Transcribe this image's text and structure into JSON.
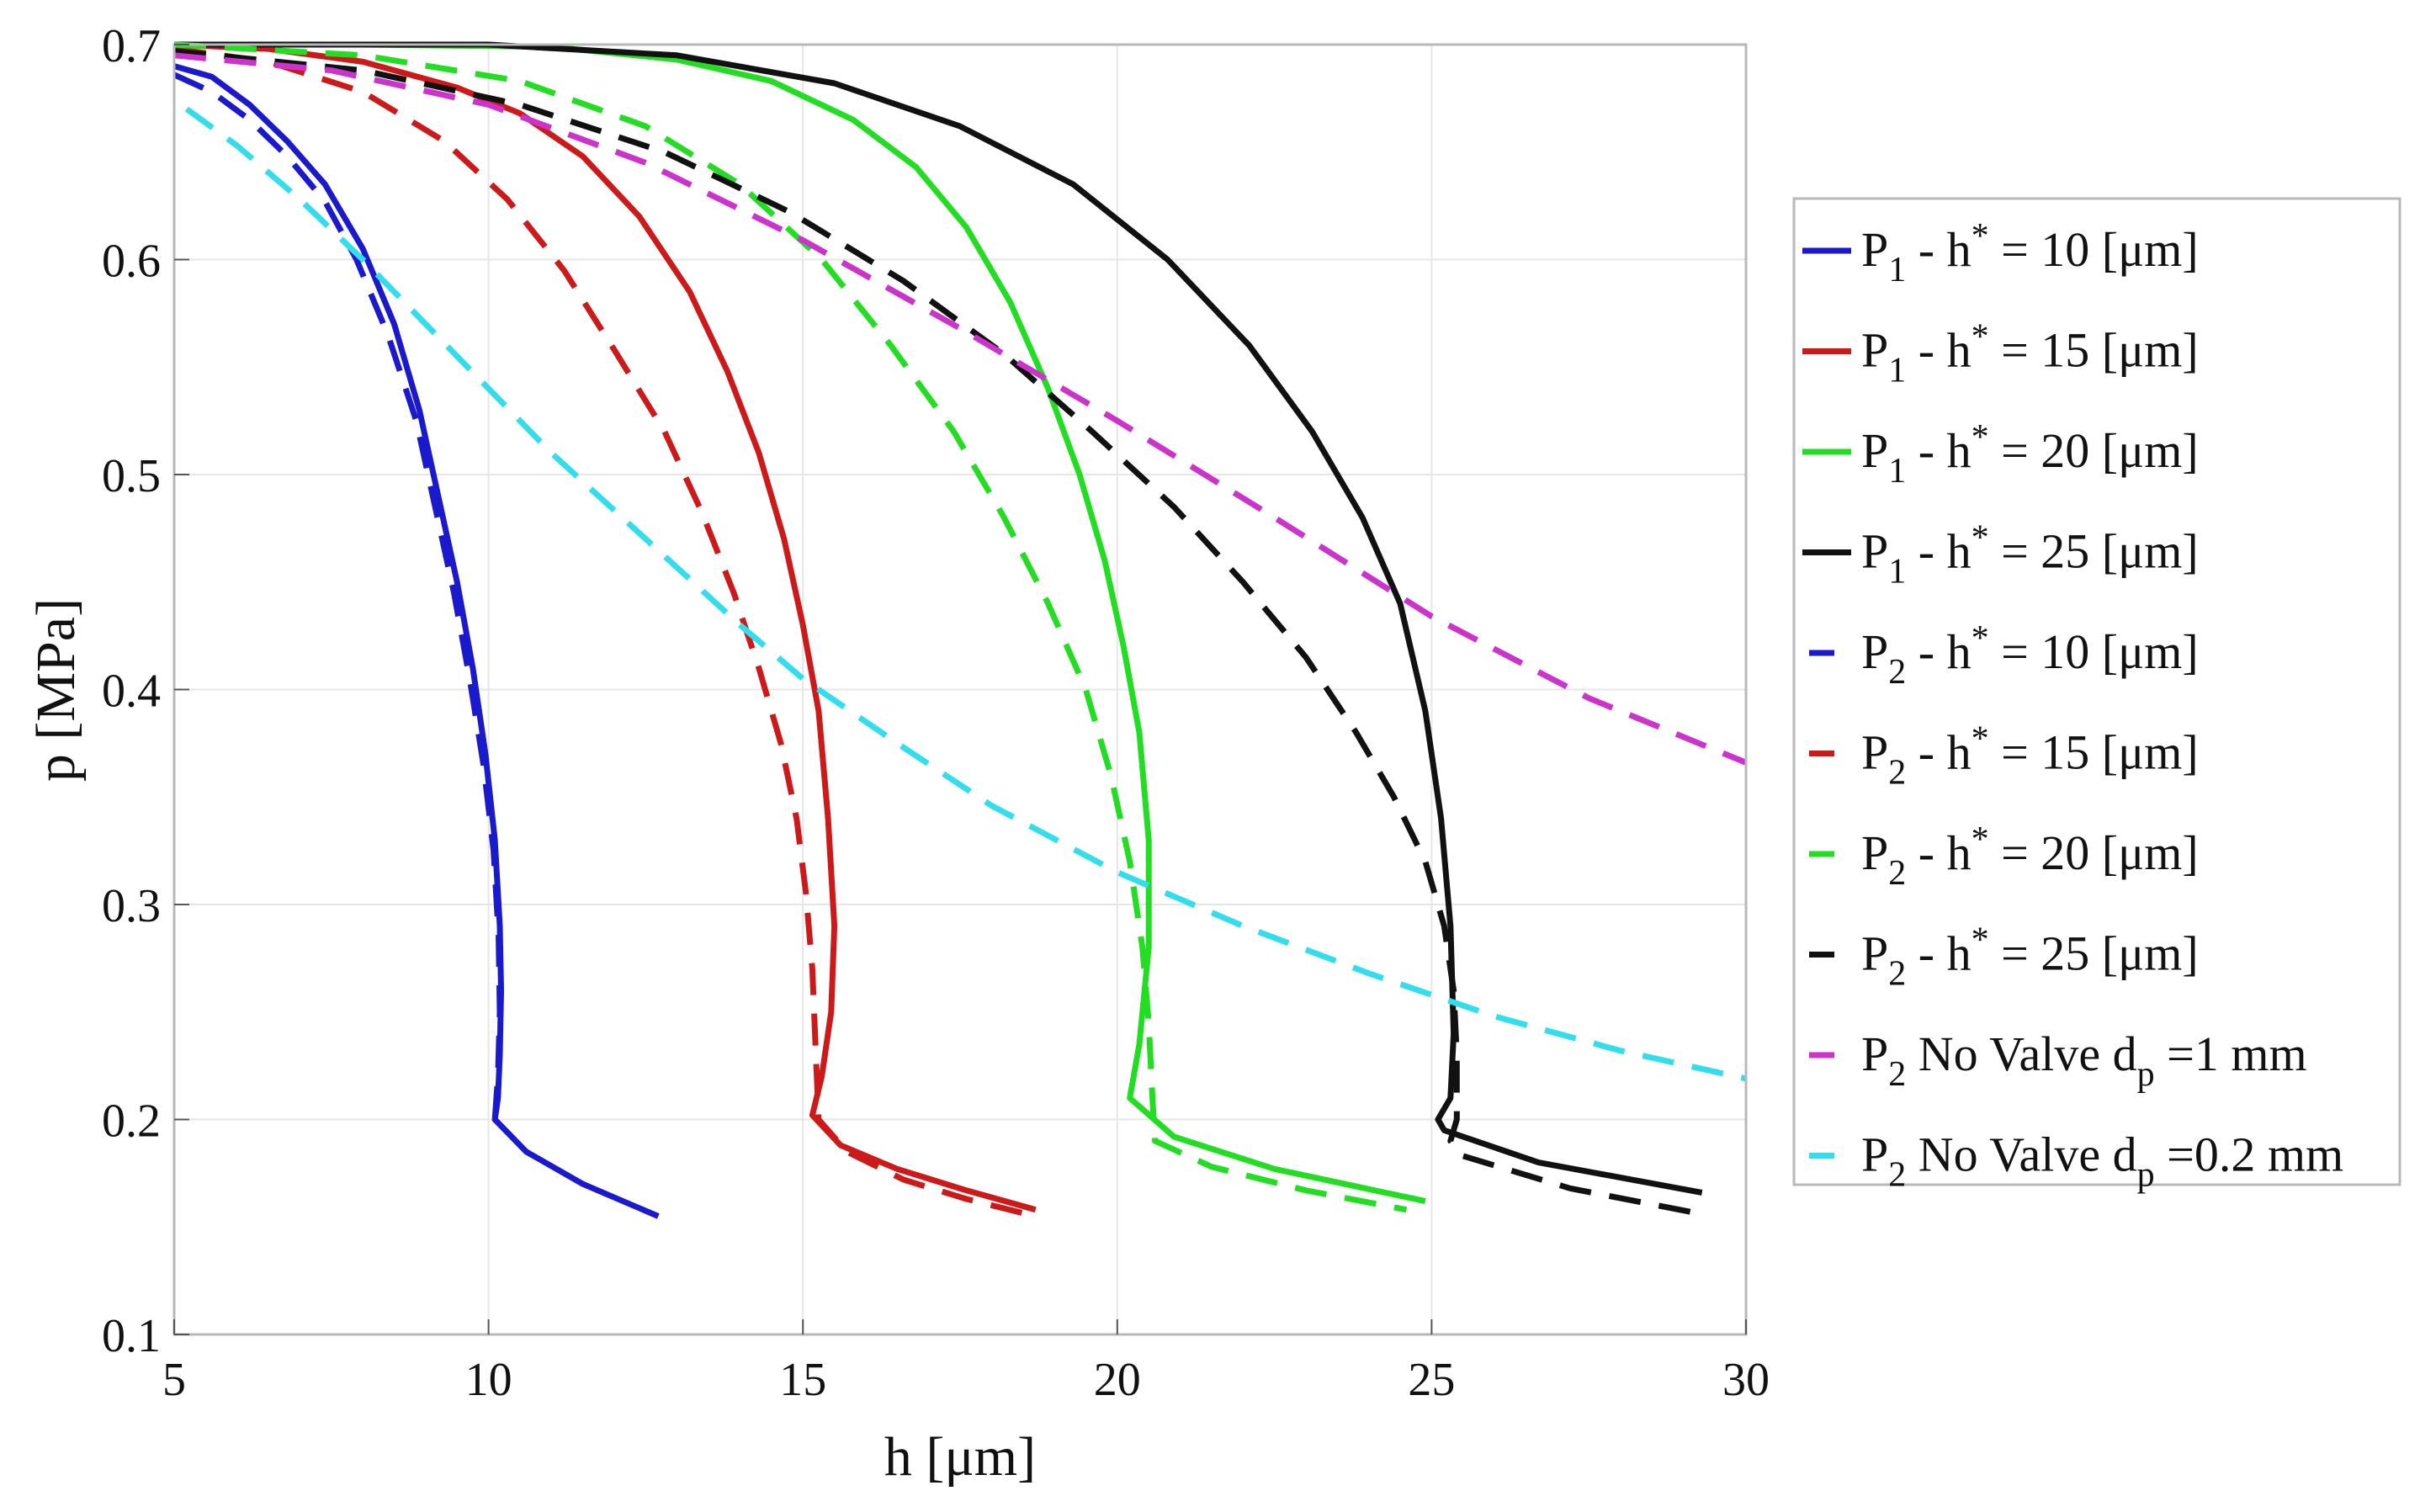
{
  "chart_data": {
    "type": "line",
    "title": "",
    "xlabel": "h [μm]",
    "ylabel": "p [MPa]",
    "xlim": [
      5,
      30
    ],
    "ylim": [
      0.1,
      0.7
    ],
    "xticks": [
      "5",
      "10",
      "15",
      "20",
      "25",
      "30"
    ],
    "yticks": [
      "0.1",
      "0.2",
      "0.3",
      "0.4",
      "0.5",
      "0.6",
      "0.7"
    ],
    "grid": true,
    "legend_position": "right",
    "series": [
      {
        "name": "P1 - h* = 10 [μm]",
        "label": {
          "main": "P",
          "sub": "1",
          "mid": " - h",
          "sup": "*",
          "rest": " = 10 [μm]"
        },
        "color": "#1a1acc",
        "dash": "solid",
        "x": [
          5,
          5.6,
          6.2,
          6.8,
          7.4,
          8,
          8.5,
          8.9,
          9.2,
          9.5,
          9.75,
          9.95,
          10.1,
          10.18,
          10.2,
          10.18,
          10.15,
          10.1,
          10.6,
          11.5,
          12.7
        ],
        "y": [
          0.69,
          0.685,
          0.672,
          0.655,
          0.635,
          0.605,
          0.57,
          0.53,
          0.49,
          0.45,
          0.41,
          0.37,
          0.33,
          0.29,
          0.26,
          0.23,
          0.21,
          0.2,
          0.185,
          0.17,
          0.155
        ]
      },
      {
        "name": "P1 - h* = 15 [μm]",
        "label": {
          "main": "P",
          "sub": "1",
          "mid": " - h",
          "sup": "*",
          "rest": " = 15 [μm]"
        },
        "color": "#cc1a1a",
        "dash": "solid",
        "x": [
          5,
          6.5,
          8,
          9.5,
          10.5,
          11.5,
          12.4,
          13.2,
          13.8,
          14.3,
          14.7,
          15,
          15.25,
          15.4,
          15.5,
          15.45,
          15.3,
          15.15,
          15.6,
          16.5,
          17.6,
          18.7
        ],
        "y": [
          0.7,
          0.698,
          0.692,
          0.68,
          0.668,
          0.648,
          0.62,
          0.585,
          0.548,
          0.51,
          0.47,
          0.43,
          0.39,
          0.34,
          0.29,
          0.25,
          0.22,
          0.202,
          0.188,
          0.177,
          0.167,
          0.158
        ]
      },
      {
        "name": "P1 - h* = 20 [μm]",
        "label": {
          "main": "P",
          "sub": "1",
          "mid": " - h",
          "sup": "*",
          "rest": " = 20 [μm]"
        },
        "color": "#22dd22",
        "dash": "solid",
        "x": [
          5,
          8,
          11,
          13,
          14.5,
          15.8,
          16.8,
          17.6,
          18.3,
          18.9,
          19.4,
          19.8,
          20.1,
          20.35,
          20.5,
          20.5,
          20.35,
          20.2,
          20.9,
          22.5,
          24.9
        ],
        "y": [
          0.7,
          0.7,
          0.699,
          0.693,
          0.683,
          0.665,
          0.643,
          0.615,
          0.58,
          0.54,
          0.5,
          0.46,
          0.42,
          0.38,
          0.33,
          0.28,
          0.235,
          0.21,
          0.192,
          0.177,
          0.162
        ]
      },
      {
        "name": "P1 - h* = 25 [μm]",
        "label": {
          "main": "P",
          "sub": "1",
          "mid": " - h",
          "sup": "*",
          "rest": " = 25 [μm]"
        },
        "color": "#111111",
        "dash": "solid",
        "x": [
          5,
          10,
          13,
          15.5,
          17.5,
          19.3,
          20.8,
          22.1,
          23.1,
          23.9,
          24.5,
          24.9,
          25.15,
          25.3,
          25.35,
          25.3,
          25.1,
          25.2,
          26.7,
          29.3
        ],
        "y": [
          0.7,
          0.7,
          0.695,
          0.682,
          0.662,
          0.635,
          0.6,
          0.56,
          0.52,
          0.48,
          0.44,
          0.39,
          0.34,
          0.29,
          0.24,
          0.21,
          0.2,
          0.195,
          0.18,
          0.166
        ]
      },
      {
        "name": "P2 - h* = 10 [μm]",
        "label": {
          "main": "P",
          "sub": "2",
          "mid": " - h",
          "sup": "*",
          "rest": " = 10 [μm]"
        },
        "color": "#1a1acc",
        "dash": "dashed",
        "x": [
          5,
          5.6,
          6.2,
          6.8,
          7.4,
          7.9,
          8.4,
          8.85,
          9.15,
          9.45,
          9.7,
          9.92,
          10.08,
          10.16,
          10.18,
          10.15,
          10.1
        ],
        "y": [
          0.686,
          0.678,
          0.665,
          0.648,
          0.627,
          0.6,
          0.565,
          0.525,
          0.485,
          0.445,
          0.405,
          0.365,
          0.325,
          0.285,
          0.25,
          0.22,
          0.2
        ]
      },
      {
        "name": "P2 - h* = 15 [μm]",
        "label": {
          "main": "P",
          "sub": "2",
          "mid": " - h",
          "sup": "*",
          "rest": " = 15 [μm]"
        },
        "color": "#cc1a1a",
        "dash": "dashed",
        "x": [
          5,
          6.5,
          8,
          9.3,
          10.3,
          11.2,
          12,
          12.8,
          13.4,
          13.9,
          14.3,
          14.65,
          14.9,
          15.05,
          15.15,
          15.2,
          15.25,
          15.7,
          16.6,
          17.6,
          18.7
        ],
        "y": [
          0.698,
          0.692,
          0.678,
          0.655,
          0.628,
          0.595,
          0.558,
          0.52,
          0.482,
          0.445,
          0.41,
          0.375,
          0.34,
          0.305,
          0.27,
          0.235,
          0.2,
          0.185,
          0.172,
          0.163,
          0.155
        ]
      },
      {
        "name": "P2 - h* = 20 [μm]",
        "label": {
          "main": "P",
          "sub": "2",
          "mid": " - h",
          "sup": "*",
          "rest": " = 20 [μm]"
        },
        "color": "#22dd22",
        "dash": "dashed",
        "x": [
          5,
          8,
          10.5,
          12.5,
          14,
          15.3,
          16.4,
          17.4,
          18.2,
          18.9,
          19.5,
          19.9,
          20.2,
          20.4,
          20.5,
          20.55,
          20.6,
          21.5,
          23,
          24.6
        ],
        "y": [
          0.7,
          0.695,
          0.683,
          0.662,
          0.635,
          0.6,
          0.56,
          0.52,
          0.48,
          0.44,
          0.4,
          0.36,
          0.32,
          0.28,
          0.245,
          0.215,
          0.19,
          0.178,
          0.167,
          0.158
        ]
      },
      {
        "name": "P2 - h* = 25 [μm]",
        "label": {
          "main": "P",
          "sub": "2",
          "mid": " - h",
          "sup": "*",
          "rest": " = 25 [μm]"
        },
        "color": "#111111",
        "dash": "dashed",
        "x": [
          5,
          8,
          10.5,
          12.8,
          14.8,
          16.6,
          18.2,
          19.6,
          20.9,
          22,
          23,
          23.8,
          24.4,
          24.9,
          25.2,
          25.35,
          25.4,
          25.4,
          25.3,
          25.5,
          27.2,
          29.3
        ],
        "y": [
          0.697,
          0.688,
          0.672,
          0.65,
          0.622,
          0.59,
          0.556,
          0.52,
          0.485,
          0.45,
          0.415,
          0.38,
          0.35,
          0.32,
          0.29,
          0.26,
          0.23,
          0.2,
          0.19,
          0.183,
          0.168,
          0.156
        ]
      },
      {
        "name": "P2 No Valve dp=1 mm",
        "label": {
          "main": "P",
          "sub": "2",
          "mid": " No Valve d",
          "sup2": "p",
          "rest": " =1 mm"
        },
        "color": "#cc33cc",
        "dash": "dashed",
        "x": [
          5,
          7.5,
          10,
          12.5,
          15,
          17.5,
          20,
          22.5,
          25,
          27.5,
          30
        ],
        "y": [
          0.695,
          0.688,
          0.672,
          0.645,
          0.609,
          0.568,
          0.525,
          0.48,
          0.434,
          0.396,
          0.366
        ]
      },
      {
        "name": "P2 No Valve dp=0.2 mm",
        "label": {
          "main": "P",
          "sub": "2",
          "mid": " No Valve d",
          "sup2": "p",
          "rest": " =0.2 mm"
        },
        "color": "#33ddee",
        "dash": "dashed",
        "x": [
          5.2,
          6,
          7,
          8,
          9,
          10,
          11,
          12.5,
          14,
          15,
          16.5,
          18,
          20,
          22,
          24,
          26,
          28,
          30
        ],
        "y": [
          0.67,
          0.653,
          0.628,
          0.6,
          0.57,
          0.54,
          0.51,
          0.47,
          0.43,
          0.405,
          0.375,
          0.346,
          0.315,
          0.29,
          0.268,
          0.248,
          0.232,
          0.219
        ]
      }
    ]
  }
}
